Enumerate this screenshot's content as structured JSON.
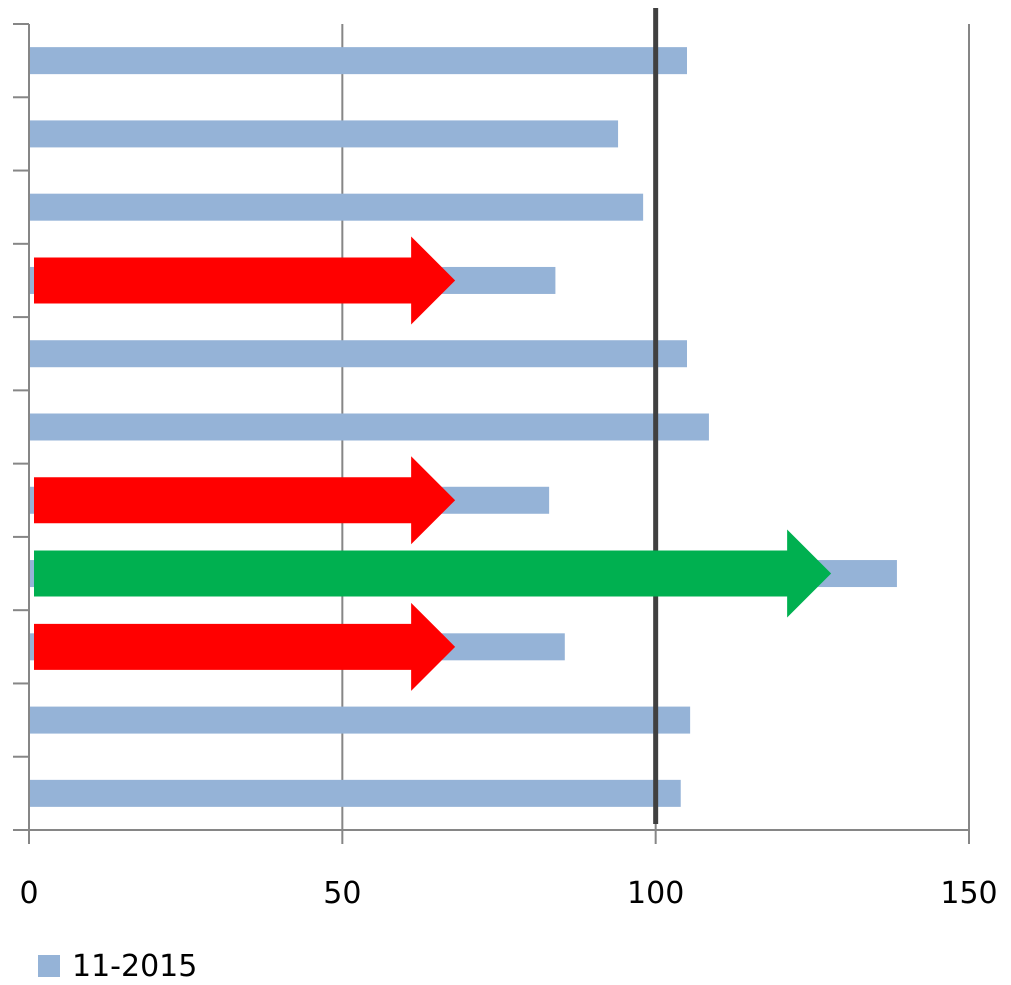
{
  "chart_data": {
    "type": "bar",
    "orientation": "horizontal",
    "categories": [
      "",
      "",
      "",
      "",
      "",
      "",
      "",
      "",
      "",
      "",
      ""
    ],
    "series": [
      {
        "name": "11-2015",
        "color": "#95b3d7",
        "values": [
          105,
          94,
          98,
          84,
          105,
          108.5,
          83,
          138.5,
          85.5,
          105.5,
          104
        ]
      }
    ],
    "xlim": [
      0,
      150
    ],
    "xticks": [
      0,
      50,
      100,
      150
    ],
    "xtick_labels": [
      "0",
      "50",
      "100",
      "150"
    ],
    "grid": true,
    "reference_line": {
      "x": 100,
      "color": "#404040"
    },
    "arrows": [
      {
        "bar_index": 3,
        "from": 0,
        "to": 68,
        "color": "#ff0000"
      },
      {
        "bar_index": 6,
        "from": 0,
        "to": 68,
        "color": "#ff0000"
      },
      {
        "bar_index": 7,
        "from": 0,
        "to": 128,
        "color": "#00b050"
      },
      {
        "bar_index": 8,
        "from": 0,
        "to": 68,
        "color": "#ff0000"
      }
    ],
    "legend": {
      "position": "bottom-left"
    }
  }
}
